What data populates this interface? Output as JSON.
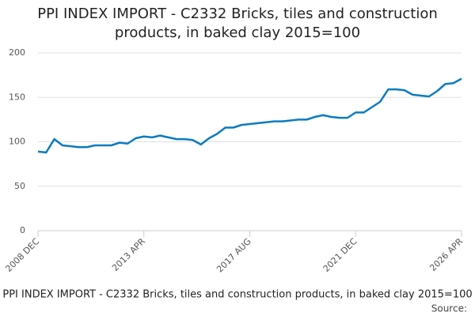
{
  "chart_data": {
    "type": "line",
    "title": "PPI INDEX IMPORT - C2332 Bricks, tiles and construction products, in baked clay 2015=100",
    "caption": "PPI INDEX IMPORT - C2332 Bricks, tiles and construction products, in baked clay 2015=100",
    "source": "Source:",
    "categories": [
      "2008 DEC",
      null,
      null,
      null,
      null,
      null,
      null,
      null,
      null,
      null,
      null,
      null,
      null,
      "2013 APR",
      null,
      null,
      null,
      null,
      null,
      null,
      null,
      null,
      null,
      null,
      null,
      null,
      "2017 AUG",
      null,
      null,
      null,
      null,
      null,
      null,
      null,
      null,
      null,
      null,
      null,
      null,
      "2021 DEC",
      null,
      null,
      null,
      null,
      null,
      null,
      null,
      null,
      null,
      null,
      null,
      null,
      "2026 APR"
    ],
    "series": [
      {
        "name": "PPI INDEX IMPORT - C2332",
        "color": "#0b7bc1",
        "values": [
          89,
          88,
          103,
          96,
          95,
          94,
          94,
          96,
          96,
          96,
          99,
          98,
          104,
          106,
          105,
          107,
          105,
          103,
          103,
          102,
          97,
          104,
          109,
          116,
          116,
          119,
          120,
          121,
          122,
          123,
          123,
          124,
          125,
          125,
          128,
          130,
          128,
          127,
          127,
          133,
          133,
          139,
          145,
          159,
          159,
          158,
          153,
          152,
          151,
          157,
          165,
          166,
          171
        ]
      }
    ],
    "ylim": [
      0,
      200
    ],
    "yticks": [
      0,
      50,
      100,
      150,
      200
    ],
    "grid": true
  }
}
